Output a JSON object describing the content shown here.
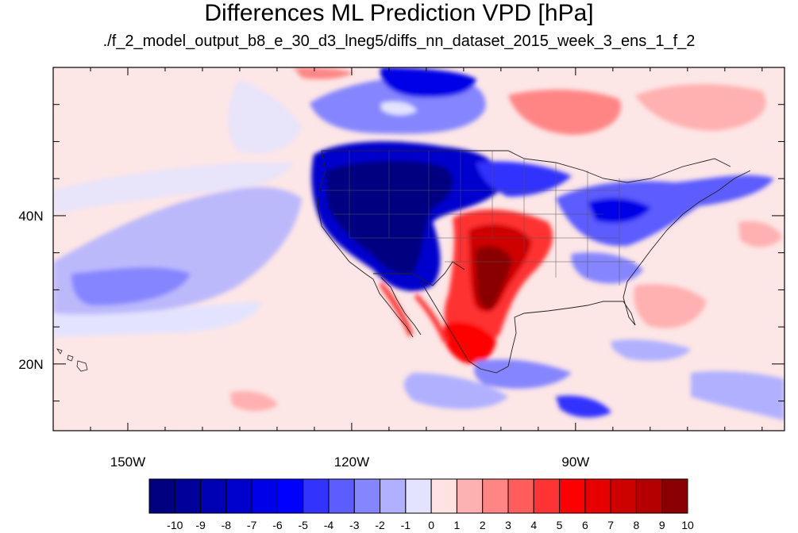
{
  "title": "Differences ML Prediction VPD [hPa]",
  "subtitle": "./f_2_model_output_b8_e_30_d3_lneg5/diffs_nn_dataset_2015_week_3_ens_1_f_2",
  "map": {
    "lon_range": [
      -160,
      -62
    ],
    "lat_range": [
      11,
      60
    ],
    "lon_ticks": [
      {
        "value": -150,
        "label": "150W"
      },
      {
        "value": -120,
        "label": "120W"
      },
      {
        "value": -90,
        "label": "90W"
      }
    ],
    "lat_ticks": [
      {
        "value": 40,
        "label": "40N"
      },
      {
        "value": 20,
        "label": "20N"
      }
    ],
    "background_color": "#fde6e6"
  },
  "colorbar": {
    "labels": [
      "-10",
      "-9",
      "-8",
      "-7",
      "-6",
      "-5",
      "-4",
      "-3",
      "-2",
      "-1",
      "0",
      "1",
      "2",
      "3",
      "4",
      "5",
      "6",
      "7",
      "8",
      "9",
      "10"
    ],
    "colors": [
      "#000080",
      "#00009a",
      "#0000b4",
      "#0000ce",
      "#0000e8",
      "#0000ff",
      "#3333ff",
      "#5c5cff",
      "#8585ff",
      "#b0b0ff",
      "#e3e3ff",
      "#ffe3e3",
      "#ffb0b0",
      "#ff8585",
      "#ff5c5c",
      "#ff3333",
      "#ff0000",
      "#e80000",
      "#ce0000",
      "#b40000",
      "#8a0000"
    ]
  }
}
